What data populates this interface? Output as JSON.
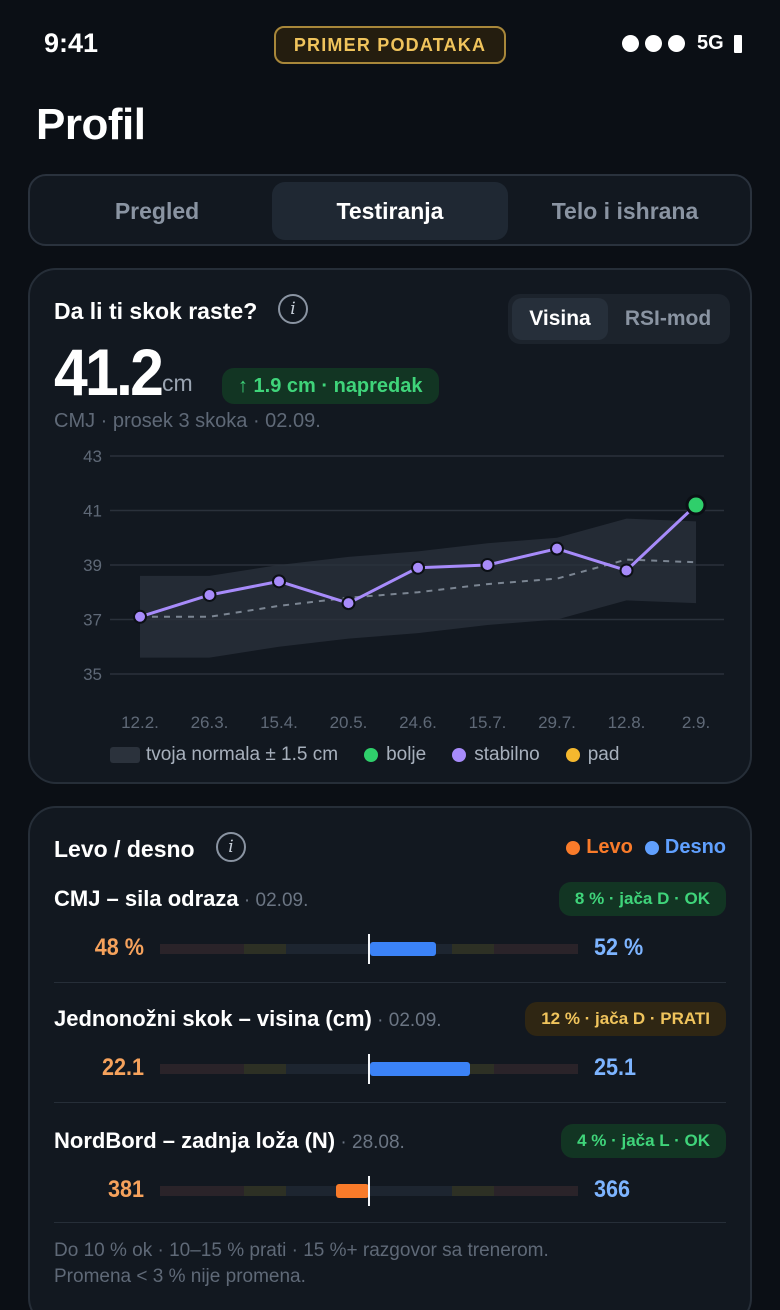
{
  "status_bar": {
    "time": "9:41",
    "badge": "PRIMER PODATAKA",
    "network": "5G",
    "signal_bars": 3
  },
  "page_title": "Profil",
  "tabs": [
    {
      "label": "Pregled",
      "active": false
    },
    {
      "label": "Testiranja",
      "active": true
    },
    {
      "label": "Telo i ishrana",
      "active": false
    }
  ],
  "jump_card": {
    "title": "Da li ti skok raste?",
    "info_icon": "info-icon",
    "toggle": [
      {
        "label": "Visina",
        "active": true
      },
      {
        "label": "RSI-mod",
        "active": false
      }
    ],
    "value": "41.2",
    "unit": "cm",
    "delta": "↑ 1.9 cm · napredak",
    "subtitle": "CMJ · prosek 3 skoka · 02.09.",
    "legend": {
      "band": "tvoja normala ± 1.5 cm",
      "better": "bolje",
      "stable": "stabilno",
      "decline": "pad"
    },
    "colors": {
      "better": "#2fcf6b",
      "stable": "#a78bfa",
      "decline": "#f5b82e",
      "band": "#2b323c"
    }
  },
  "chart_data": {
    "type": "line",
    "categories": [
      "12.2.",
      "26.3.",
      "15.4.",
      "20.5.",
      "24.6.",
      "15.7.",
      "29.7.",
      "12.8.",
      "2.9."
    ],
    "series": [
      {
        "name": "stabilno",
        "values": [
          37.1,
          37.9,
          38.4,
          37.6,
          38.9,
          39.0,
          39.6,
          38.8,
          41.2
        ]
      }
    ],
    "point_status": [
      "stable",
      "stable",
      "stable",
      "stable",
      "stable",
      "stable",
      "stable",
      "stable",
      "better"
    ],
    "baseline": [
      37.1,
      37.1,
      37.5,
      37.8,
      38.0,
      38.3,
      38.5,
      39.2,
      39.1
    ],
    "band_lower": [
      35.6,
      35.6,
      36.0,
      36.3,
      36.5,
      36.8,
      37.0,
      37.7,
      37.6
    ],
    "band_upper": [
      38.6,
      38.6,
      39.0,
      39.3,
      39.5,
      39.8,
      40.0,
      40.7,
      40.6
    ],
    "yticks": [
      43,
      41,
      39,
      37,
      35
    ],
    "ylim": [
      35,
      43
    ],
    "grid": true,
    "xlabel": "",
    "ylabel": ""
  },
  "lr_card": {
    "title": "Levo / desno",
    "info_icon": "info-icon",
    "legend_left": "Levo",
    "legend_right": "Desno",
    "colors": {
      "left": "#f97b2a",
      "right": "#3b82f6"
    },
    "rows": [
      {
        "name": "CMJ – sila odraza",
        "date": " · 02.09.",
        "badge": "8 % · jača D · OK",
        "status": "ok",
        "left_value": "48 %",
        "right_value": "52 %",
        "stronger_side": "right",
        "asymmetry_pct": 8
      },
      {
        "name": "Jednonožni skok – visina (cm)",
        "date": " · 02.09.",
        "badge": "12 % · jača D · PRATI",
        "status": "warn",
        "left_value": "22.1",
        "right_value": "25.1",
        "stronger_side": "right",
        "asymmetry_pct": 12
      },
      {
        "name": "NordBord – zadnja loža (N)",
        "date": " · 28.08.",
        "badge": "4 % · jača L · OK",
        "status": "ok",
        "left_value": "381",
        "right_value": "366",
        "stronger_side": "left",
        "asymmetry_pct": 4
      }
    ],
    "footnote_line1": "Do 10 % ok · 10–15 % prati · 15 %+ razgovor sa trenerom.",
    "footnote_line2": "Promena < 3 % nije promena."
  }
}
